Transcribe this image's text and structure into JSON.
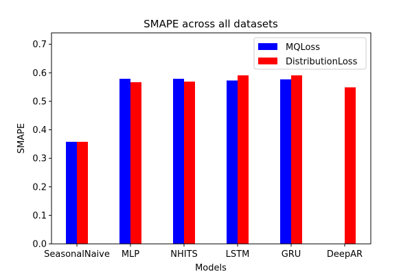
{
  "chart_data": {
    "type": "bar",
    "title": "SMAPE across all datasets",
    "xlabel": "Models",
    "ylabel": "SMAPE",
    "categories": [
      "SeasonalNaive",
      "MLP",
      "NHITS",
      "LSTM",
      "GRU",
      "DeepAR"
    ],
    "series": [
      {
        "name": "MQLoss",
        "color": "#0000ff",
        "values": [
          0.358,
          0.579,
          0.579,
          0.573,
          0.577,
          null
        ]
      },
      {
        "name": "DistributionLoss",
        "color": "#ff0000",
        "values": [
          0.358,
          0.567,
          0.569,
          0.591,
          0.591,
          0.549
        ]
      }
    ],
    "ylim": [
      0,
      0.74
    ],
    "yticks": [
      "0.0",
      "0.1",
      "0.2",
      "0.3",
      "0.4",
      "0.5",
      "0.6",
      "0.7"
    ],
    "grid": false,
    "legend_position": "top-right"
  }
}
